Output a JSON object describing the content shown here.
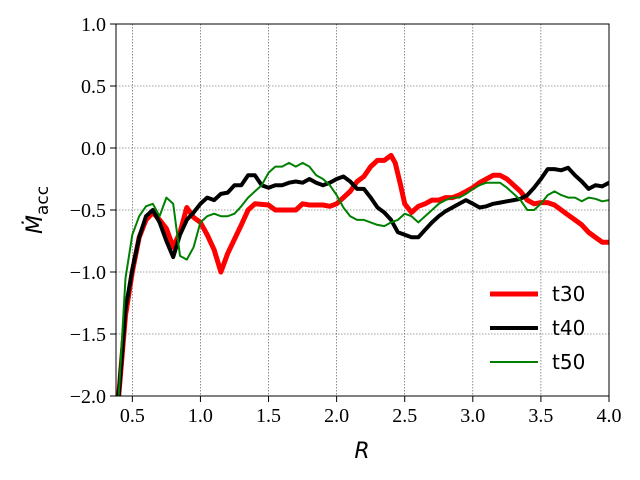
{
  "chart_data": {
    "type": "line",
    "xlabel": "R",
    "ylabel": "Ṁ",
    "ylabel_sub": "acc",
    "xlim": [
      0.38,
      4.0
    ],
    "ylim": [
      -2.0,
      1.0
    ],
    "xticks": [
      0.5,
      1.0,
      1.5,
      2.0,
      2.5,
      3.0,
      3.5,
      4.0
    ],
    "xtick_labels": [
      "0.5",
      "1.0",
      "1.5",
      "2.0",
      "2.5",
      "3.0",
      "3.5",
      "4.0"
    ],
    "yticks": [
      -2.0,
      -1.5,
      -1.0,
      -0.5,
      0.0,
      0.5,
      1.0
    ],
    "ytick_labels": [
      "−2.0",
      "−1.5",
      "−1.0",
      "−0.5",
      "0.0",
      "0.5",
      "1.0"
    ],
    "grid": true,
    "legend_position": "lower right",
    "series": [
      {
        "name": "t30",
        "color": "#ff0000",
        "width": 5,
        "x": [
          0.4,
          0.45,
          0.5,
          0.55,
          0.6,
          0.65,
          0.7,
          0.75,
          0.8,
          0.85,
          0.9,
          0.95,
          1.0,
          1.05,
          1.1,
          1.15,
          1.2,
          1.3,
          1.35,
          1.4,
          1.5,
          1.55,
          1.6,
          1.65,
          1.7,
          1.75,
          1.8,
          1.9,
          1.95,
          2.0,
          2.05,
          2.1,
          2.15,
          2.2,
          2.25,
          2.3,
          2.35,
          2.4,
          2.43,
          2.47,
          2.5,
          2.55,
          2.6,
          2.65,
          2.7,
          2.75,
          2.8,
          2.85,
          2.9,
          2.95,
          3.0,
          3.05,
          3.1,
          3.15,
          3.2,
          3.25,
          3.3,
          3.35,
          3.4,
          3.45,
          3.5,
          3.55,
          3.6,
          3.65,
          3.7,
          3.75,
          3.8,
          3.85,
          3.9,
          3.95,
          4.0
        ],
        "y": [
          -2.0,
          -1.35,
          -1.0,
          -0.72,
          -0.58,
          -0.52,
          -0.58,
          -0.65,
          -0.8,
          -0.68,
          -0.48,
          -0.56,
          -0.6,
          -0.7,
          -0.82,
          -1.0,
          -0.85,
          -0.62,
          -0.5,
          -0.45,
          -0.46,
          -0.5,
          -0.5,
          -0.5,
          -0.5,
          -0.45,
          -0.46,
          -0.46,
          -0.47,
          -0.45,
          -0.4,
          -0.35,
          -0.27,
          -0.23,
          -0.15,
          -0.1,
          -0.1,
          -0.06,
          -0.12,
          -0.3,
          -0.45,
          -0.52,
          -0.47,
          -0.45,
          -0.42,
          -0.42,
          -0.4,
          -0.4,
          -0.38,
          -0.35,
          -0.32,
          -0.28,
          -0.25,
          -0.22,
          -0.22,
          -0.25,
          -0.3,
          -0.35,
          -0.42,
          -0.45,
          -0.44,
          -0.44,
          -0.46,
          -0.5,
          -0.54,
          -0.58,
          -0.62,
          -0.68,
          -0.72,
          -0.76,
          -0.76
        ]
      },
      {
        "name": "t40",
        "color": "#000000",
        "width": 4,
        "x": [
          0.4,
          0.45,
          0.5,
          0.55,
          0.6,
          0.65,
          0.7,
          0.75,
          0.8,
          0.85,
          0.9,
          0.95,
          1.0,
          1.05,
          1.1,
          1.15,
          1.2,
          1.25,
          1.3,
          1.35,
          1.4,
          1.45,
          1.5,
          1.55,
          1.6,
          1.65,
          1.7,
          1.75,
          1.8,
          1.85,
          1.9,
          1.95,
          2.0,
          2.05,
          2.1,
          2.15,
          2.2,
          2.25,
          2.3,
          2.35,
          2.4,
          2.45,
          2.5,
          2.55,
          2.6,
          2.65,
          2.7,
          2.75,
          2.8,
          2.85,
          2.9,
          2.95,
          3.0,
          3.05,
          3.1,
          3.15,
          3.2,
          3.25,
          3.3,
          3.35,
          3.4,
          3.45,
          3.5,
          3.55,
          3.6,
          3.65,
          3.7,
          3.75,
          3.8,
          3.85,
          3.9,
          3.95,
          4.0
        ],
        "y": [
          -2.0,
          -1.3,
          -0.98,
          -0.72,
          -0.55,
          -0.5,
          -0.6,
          -0.75,
          -0.88,
          -0.7,
          -0.58,
          -0.52,
          -0.45,
          -0.4,
          -0.42,
          -0.37,
          -0.36,
          -0.3,
          -0.3,
          -0.22,
          -0.22,
          -0.3,
          -0.32,
          -0.3,
          -0.3,
          -0.28,
          -0.27,
          -0.28,
          -0.25,
          -0.28,
          -0.3,
          -0.28,
          -0.25,
          -0.23,
          -0.27,
          -0.33,
          -0.33,
          -0.4,
          -0.48,
          -0.52,
          -0.58,
          -0.68,
          -0.7,
          -0.72,
          -0.72,
          -0.66,
          -0.6,
          -0.55,
          -0.51,
          -0.48,
          -0.45,
          -0.42,
          -0.45,
          -0.48,
          -0.47,
          -0.45,
          -0.44,
          -0.43,
          -0.42,
          -0.41,
          -0.38,
          -0.32,
          -0.25,
          -0.17,
          -0.17,
          -0.18,
          -0.16,
          -0.22,
          -0.27,
          -0.33,
          -0.3,
          -0.31,
          -0.28
        ]
      },
      {
        "name": "t50",
        "color": "#008000",
        "width": 2,
        "x": [
          0.4,
          0.45,
          0.5,
          0.55,
          0.6,
          0.65,
          0.7,
          0.75,
          0.8,
          0.85,
          0.9,
          0.95,
          1.0,
          1.05,
          1.1,
          1.15,
          1.2,
          1.25,
          1.3,
          1.35,
          1.4,
          1.45,
          1.5,
          1.55,
          1.6,
          1.65,
          1.7,
          1.75,
          1.8,
          1.85,
          1.9,
          1.95,
          2.0,
          2.05,
          2.1,
          2.15,
          2.2,
          2.25,
          2.3,
          2.35,
          2.4,
          2.45,
          2.5,
          2.55,
          2.6,
          2.65,
          2.7,
          2.75,
          2.8,
          2.85,
          2.9,
          2.95,
          3.0,
          3.05,
          3.1,
          3.15,
          3.2,
          3.25,
          3.3,
          3.35,
          3.4,
          3.45,
          3.5,
          3.55,
          3.6,
          3.65,
          3.7,
          3.75,
          3.8,
          3.85,
          3.9,
          3.95,
          4.0
        ],
        "y": [
          -2.0,
          -1.05,
          -0.7,
          -0.55,
          -0.47,
          -0.45,
          -0.55,
          -0.4,
          -0.45,
          -0.87,
          -0.9,
          -0.8,
          -0.6,
          -0.55,
          -0.53,
          -0.55,
          -0.55,
          -0.53,
          -0.47,
          -0.4,
          -0.35,
          -0.3,
          -0.2,
          -0.15,
          -0.15,
          -0.12,
          -0.15,
          -0.12,
          -0.15,
          -0.22,
          -0.25,
          -0.3,
          -0.38,
          -0.48,
          -0.55,
          -0.58,
          -0.58,
          -0.6,
          -0.62,
          -0.63,
          -0.6,
          -0.58,
          -0.53,
          -0.55,
          -0.6,
          -0.55,
          -0.5,
          -0.45,
          -0.42,
          -0.4,
          -0.4,
          -0.37,
          -0.33,
          -0.3,
          -0.28,
          -0.28,
          -0.28,
          -0.32,
          -0.37,
          -0.42,
          -0.5,
          -0.5,
          -0.45,
          -0.38,
          -0.35,
          -0.38,
          -0.4,
          -0.4,
          -0.43,
          -0.4,
          -0.41,
          -0.43,
          -0.42
        ]
      }
    ]
  }
}
